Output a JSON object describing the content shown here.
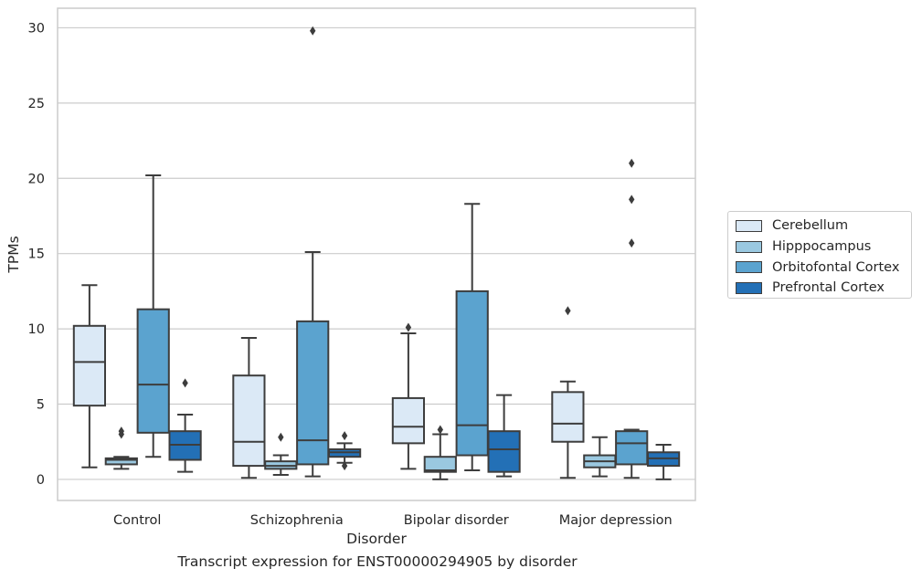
{
  "caption": "Transcript expression for ENST00000294905 by disorder",
  "legend": {
    "items": [
      {
        "label": "Cerebellum",
        "color": "#dbe9f6"
      },
      {
        "label": "Hipppocampus",
        "color": "#9ac8e0"
      },
      {
        "label": "Orbitofontal Cortex",
        "color": "#5ba3cf"
      },
      {
        "label": "Prefrontal Cortex",
        "color": "#2370b6"
      }
    ]
  },
  "chart_data": {
    "type": "box",
    "xlabel": "Disorder",
    "ylabel": "TPMs",
    "ylim": [
      -1.4,
      31.3
    ],
    "yticks": [
      0,
      5,
      10,
      15,
      20,
      25,
      30
    ],
    "grid": true,
    "legend_position": "right",
    "categories": [
      "Control",
      "Schizophrenia",
      "Bipolar disorder",
      "Major depression"
    ],
    "series": [
      {
        "name": "Cerebellum",
        "color": "#dbe9f6",
        "boxes": [
          {
            "whislo": 0.8,
            "q1": 4.9,
            "med": 7.8,
            "q3": 10.2,
            "whishi": 12.9,
            "fliers": []
          },
          {
            "whislo": 0.1,
            "q1": 0.9,
            "med": 2.5,
            "q3": 6.9,
            "whishi": 9.4,
            "fliers": []
          },
          {
            "whislo": 0.7,
            "q1": 2.4,
            "med": 3.5,
            "q3": 5.4,
            "whishi": 9.7,
            "fliers": [
              10.1
            ]
          },
          {
            "whislo": 0.1,
            "q1": 2.5,
            "med": 3.7,
            "q3": 5.8,
            "whishi": 6.5,
            "fliers": [
              11.2
            ]
          }
        ]
      },
      {
        "name": "Hipppocampus",
        "color": "#9ac8e0",
        "boxes": [
          {
            "whislo": 0.7,
            "q1": 1.0,
            "med": 1.3,
            "q3": 1.4,
            "whishi": 1.5,
            "fliers": [
              3.0,
              3.2
            ]
          },
          {
            "whislo": 0.3,
            "q1": 0.7,
            "med": 0.9,
            "q3": 1.2,
            "whishi": 1.6,
            "fliers": [
              2.8
            ]
          },
          {
            "whislo": 0.0,
            "q1": 0.5,
            "med": 0.6,
            "q3": 1.5,
            "whishi": 3.0,
            "fliers": [
              3.3
            ]
          },
          {
            "whislo": 0.2,
            "q1": 0.8,
            "med": 1.2,
            "q3": 1.6,
            "whishi": 2.8,
            "fliers": []
          }
        ]
      },
      {
        "name": "Orbitofontal Cortex",
        "color": "#5ba3cf",
        "boxes": [
          {
            "whislo": 1.5,
            "q1": 3.1,
            "med": 6.3,
            "q3": 11.3,
            "whishi": 20.2,
            "fliers": []
          },
          {
            "whislo": 0.2,
            "q1": 1.0,
            "med": 2.6,
            "q3": 10.5,
            "whishi": 15.1,
            "fliers": [
              29.8
            ]
          },
          {
            "whislo": 0.6,
            "q1": 1.6,
            "med": 3.6,
            "q3": 12.5,
            "whishi": 18.3,
            "fliers": []
          },
          {
            "whislo": 0.1,
            "q1": 1.0,
            "med": 2.4,
            "q3": 3.2,
            "whishi": 3.3,
            "fliers": [
              15.7,
              18.6,
              21.0
            ]
          }
        ]
      },
      {
        "name": "Prefrontal Cortex",
        "color": "#2370b6",
        "boxes": [
          {
            "whislo": 0.5,
            "q1": 1.3,
            "med": 2.3,
            "q3": 3.2,
            "whishi": 4.3,
            "fliers": [
              6.4
            ]
          },
          {
            "whislo": 1.1,
            "q1": 1.5,
            "med": 1.8,
            "q3": 2.0,
            "whishi": 2.4,
            "fliers": [
              0.9,
              2.9
            ]
          },
          {
            "whislo": 0.2,
            "q1": 0.5,
            "med": 2.0,
            "q3": 3.2,
            "whishi": 5.6,
            "fliers": []
          },
          {
            "whislo": 0.0,
            "q1": 0.9,
            "med": 1.4,
            "q3": 1.8,
            "whishi": 2.3,
            "fliers": []
          }
        ]
      }
    ]
  }
}
